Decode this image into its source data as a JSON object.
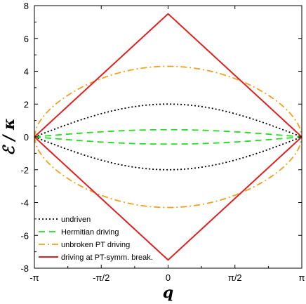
{
  "chart_data": {
    "type": "line",
    "title": "",
    "xlabel": "q",
    "ylabel": "ℰ / κ",
    "xlim": [
      -3.14159,
      3.14159
    ],
    "ylim": [
      -8,
      8
    ],
    "x_ticks": [
      {
        "value": -3.14159,
        "label": "-π"
      },
      {
        "value": -1.5708,
        "label": "-π/2"
      },
      {
        "value": 0,
        "label": "0"
      },
      {
        "value": 1.5708,
        "label": "π/2"
      },
      {
        "value": 3.14159,
        "label": "π"
      }
    ],
    "y_ticks": [
      {
        "value": -8,
        "label": "-8"
      },
      {
        "value": -6,
        "label": "-6"
      },
      {
        "value": -4,
        "label": "-4"
      },
      {
        "value": -2,
        "label": "-2"
      },
      {
        "value": 0,
        "label": "0"
      },
      {
        "value": 2,
        "label": "2"
      },
      {
        "value": 4,
        "label": "4"
      },
      {
        "value": 6,
        "label": "6"
      },
      {
        "value": 8,
        "label": "8"
      }
    ],
    "grid": false,
    "legend_position": "bottom-left",
    "series": [
      {
        "name": "undriven",
        "color": "#000000",
        "dash": "2,3",
        "curve": "cosine",
        "x": [
          -3.14159,
          -2.35619,
          -1.5708,
          -0.7854,
          0,
          0.7854,
          1.5708,
          2.35619,
          3.14159
        ],
        "y": [
          0,
          0.77,
          1.41,
          1.85,
          2.0,
          1.85,
          1.41,
          0.77,
          0
        ],
        "mirrored": true
      },
      {
        "name": "Hermitian driving",
        "color": "#22dd22",
        "dash": "9,6",
        "curve": "cosine",
        "x": [
          -3.14159,
          -2.35619,
          -1.5708,
          -0.7854,
          0,
          0.7854,
          1.5708,
          2.35619,
          3.14159
        ],
        "y": [
          0,
          0.17,
          0.31,
          0.41,
          0.44,
          0.41,
          0.31,
          0.17,
          0
        ],
        "mirrored": true
      },
      {
        "name": "unbroken PT driving",
        "color": "#f0a020",
        "dash": "9,4,2,4",
        "curve": "sine-power",
        "x": [
          -3.14159,
          -2.35619,
          -1.5708,
          -0.7854,
          0,
          0.7854,
          1.5708,
          2.35619,
          3.14159
        ],
        "y": [
          0,
          2.4,
          3.6,
          4.15,
          4.3,
          4.15,
          3.6,
          2.4,
          0
        ],
        "mirrored": true
      },
      {
        "name": "driving at PT-symm. break.",
        "color": "#e02020",
        "dash": "",
        "curve": "linear",
        "x": [
          -3.14159,
          0,
          3.14159
        ],
        "y": [
          0,
          7.5,
          0
        ],
        "mirrored": true
      }
    ]
  }
}
